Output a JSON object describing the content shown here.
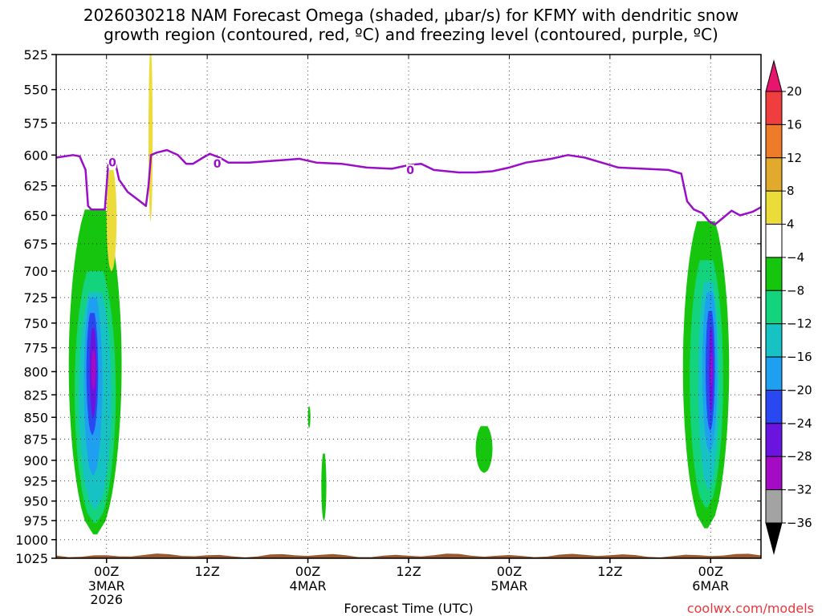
{
  "title": {
    "line1": "2026030218 NAM Forecast Omega (shaded, μbar/s) for KFMY with dendritic snow",
    "line2": "growth region (contoured, red, ºC) and freezing level (contoured, purple, ºC)"
  },
  "credit": "coolwx.com/models",
  "chart_data": {
    "type": "heatmap",
    "title": "2026030218 NAM Forecast Omega (shaded, μbar/s) for KFMY with dendritic snow growth region (contoured, red, ºC) and freezing level (contoured, purple, ºC)",
    "xlabel": "Forecast Time (UTC)",
    "ylabel": "",
    "x_unit": "hours from 2026-03-02 18Z",
    "xlim": [
      0,
      84
    ],
    "ylim": [
      1025,
      525
    ],
    "y_ticks": [
      525,
      550,
      575,
      600,
      625,
      650,
      675,
      700,
      725,
      750,
      775,
      800,
      825,
      850,
      875,
      900,
      925,
      950,
      975,
      1000,
      1025
    ],
    "x_ticks": [
      {
        "x": 6,
        "label": "00Z",
        "sub1": "3MAR",
        "sub2": "2026"
      },
      {
        "x": 18,
        "label": "12Z",
        "sub1": "",
        "sub2": ""
      },
      {
        "x": 30,
        "label": "00Z",
        "sub1": "4MAR",
        "sub2": ""
      },
      {
        "x": 42,
        "label": "12Z",
        "sub1": "",
        "sub2": ""
      },
      {
        "x": 54,
        "label": "00Z",
        "sub1": "5MAR",
        "sub2": ""
      },
      {
        "x": 66,
        "label": "12Z",
        "sub1": "",
        "sub2": ""
      },
      {
        "x": 78,
        "label": "00Z",
        "sub1": "6MAR",
        "sub2": ""
      }
    ],
    "grid": true,
    "colorbar": {
      "labels": [
        "20",
        "16",
        "12",
        "8",
        "4",
        "−4",
        "−8",
        "−12",
        "−16",
        "−20",
        "−24",
        "−28",
        "−32",
        "−36"
      ],
      "colors": [
        "#e8156f",
        "#f03e3e",
        "#ee7b2a",
        "#e2aa2c",
        "#ebdc3a",
        "#ffffff",
        "#16c60e",
        "#14d37d",
        "#17c2c4",
        "#1e9ff0",
        "#2a48f2",
        "#6b14e0",
        "#a30bc4",
        "#a3a3a3",
        "#000000"
      ]
    },
    "freezing_level": {
      "color": "#9a0ec8",
      "contour_label": "0",
      "points": [
        [
          0,
          602
        ],
        [
          2,
          600
        ],
        [
          2.8,
          601
        ],
        [
          3.5,
          612
        ],
        [
          3.8,
          642
        ],
        [
          4.2,
          645
        ],
        [
          5.8,
          645
        ],
        [
          6.2,
          608
        ],
        [
          7,
          605
        ],
        [
          7.5,
          620
        ],
        [
          8.5,
          630
        ],
        [
          10,
          638
        ],
        [
          10.7,
          642
        ],
        [
          11,
          625
        ],
        [
          11.3,
          600
        ],
        [
          12,
          598
        ],
        [
          13.2,
          596
        ],
        [
          14.5,
          600
        ],
        [
          15.5,
          607
        ],
        [
          16.3,
          607
        ],
        [
          17.5,
          602
        ],
        [
          18.3,
          599
        ],
        [
          19.5,
          602
        ],
        [
          20.5,
          606
        ],
        [
          23,
          606
        ],
        [
          25,
          605
        ],
        [
          27,
          604
        ],
        [
          29,
          603
        ],
        [
          31,
          606
        ],
        [
          34,
          607
        ],
        [
          37,
          610
        ],
        [
          40,
          611
        ],
        [
          42,
          608
        ],
        [
          43.5,
          607
        ],
        [
          45,
          612
        ],
        [
          48,
          614
        ],
        [
          50,
          614
        ],
        [
          52,
          613
        ],
        [
          54,
          610
        ],
        [
          56,
          606
        ],
        [
          59,
          603
        ],
        [
          61,
          600
        ],
        [
          63,
          602
        ],
        [
          65,
          606
        ],
        [
          67,
          610
        ],
        [
          70,
          611
        ],
        [
          73,
          612
        ],
        [
          74.5,
          615
        ],
        [
          75.2,
          638
        ],
        [
          76,
          645
        ],
        [
          77,
          648
        ],
        [
          77.8,
          655
        ],
        [
          78.5,
          658
        ],
        [
          79.5,
          652
        ],
        [
          80.5,
          646
        ],
        [
          81.5,
          650
        ],
        [
          83,
          647
        ],
        [
          84,
          643
        ]
      ]
    },
    "omega_regions": [
      {
        "level": "-4",
        "x0": 1.5,
        "x1": 7.8,
        "p_top": 645,
        "p_bot": 993
      },
      {
        "level": "-8",
        "x0": 2.2,
        "x1": 7.1,
        "p_top": 700,
        "p_bot": 978
      },
      {
        "level": "-12",
        "x0": 2.7,
        "x1": 6.6,
        "p_top": 720,
        "p_bot": 960
      },
      {
        "level": "-16",
        "x0": 3.3,
        "x1": 5.5,
        "p_top": 725,
        "p_bot": 918
      },
      {
        "level": "-20",
        "x0": 3.6,
        "x1": 5.0,
        "p_top": 740,
        "p_bot": 870
      },
      {
        "level": "-24",
        "x0": 4.0,
        "x1": 4.8,
        "p_top": 755,
        "p_bot": 850
      },
      {
        "level": "-28",
        "x0": 4.2,
        "x1": 4.7,
        "p_top": 778,
        "p_bot": 820
      },
      {
        "level": "4",
        "x0": 6.0,
        "x1": 7.2,
        "p_top": 612,
        "p_bot": 700
      },
      {
        "level": "4",
        "x0": 11.0,
        "x1": 11.5,
        "p_top": 525,
        "p_bot": 655
      },
      {
        "level": "-4",
        "x0": 30.0,
        "x1": 30.3,
        "p_top": 838,
        "p_bot": 862
      },
      {
        "level": "-4",
        "x0": 31.6,
        "x1": 32.2,
        "p_top": 892,
        "p_bot": 975
      },
      {
        "level": "-4",
        "x0": 50.0,
        "x1": 52.0,
        "p_top": 860,
        "p_bot": 915
      },
      {
        "level": "-4",
        "x0": 74.7,
        "x1": 80.2,
        "p_top": 655,
        "p_bot": 985
      },
      {
        "level": "-8",
        "x0": 75.5,
        "x1": 79.5,
        "p_top": 690,
        "p_bot": 958
      },
      {
        "level": "-12",
        "x0": 76.5,
        "x1": 79.0,
        "p_top": 710,
        "p_bot": 935
      },
      {
        "level": "-16",
        "x0": 77.0,
        "x1": 78.8,
        "p_top": 720,
        "p_bot": 890
      },
      {
        "level": "-20",
        "x0": 77.4,
        "x1": 78.5,
        "p_top": 738,
        "p_bot": 865
      },
      {
        "level": "-24",
        "x0": 77.8,
        "x1": 78.3,
        "p_top": 755,
        "p_bot": 845
      },
      {
        "level": "-28",
        "x0": 78.0,
        "x1": 78.2,
        "p_top": 780,
        "p_bot": 815
      }
    ],
    "terrain": {
      "color": "#9b5a2e",
      "p_top": 1018
    }
  }
}
